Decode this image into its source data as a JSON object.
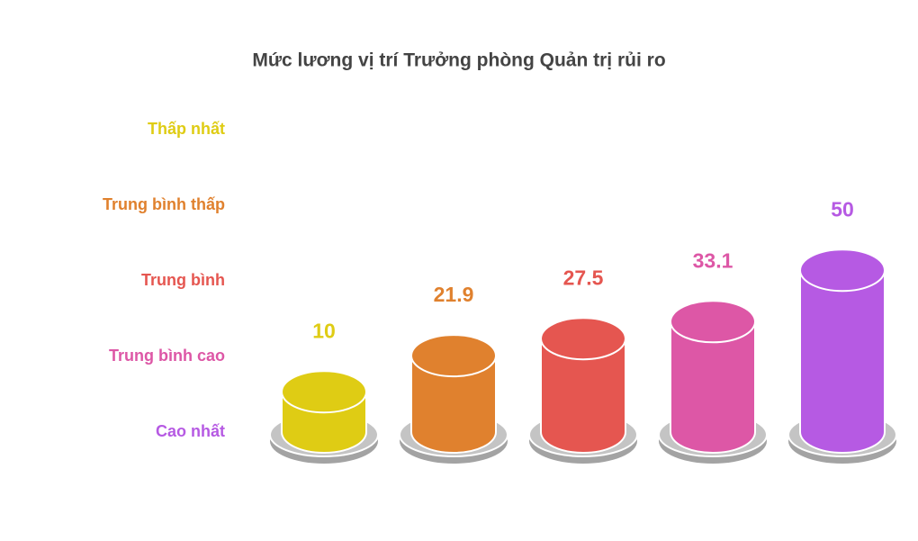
{
  "chart_data": {
    "type": "cylinder-bar",
    "title": "Mức lương vị trí Trưởng phòng Quản trị rủi ro",
    "categories": [
      "Thấp nhất",
      "Trung bình thấp",
      "Trung bình",
      "Trung bình cao",
      "Cao nhất"
    ],
    "values": [
      10,
      21.9,
      27.5,
      33.1,
      50
    ],
    "colors": [
      "#dfcc14",
      "#e0812e",
      "#e55650",
      "#dd57a6",
      "#b65ae3"
    ]
  }
}
